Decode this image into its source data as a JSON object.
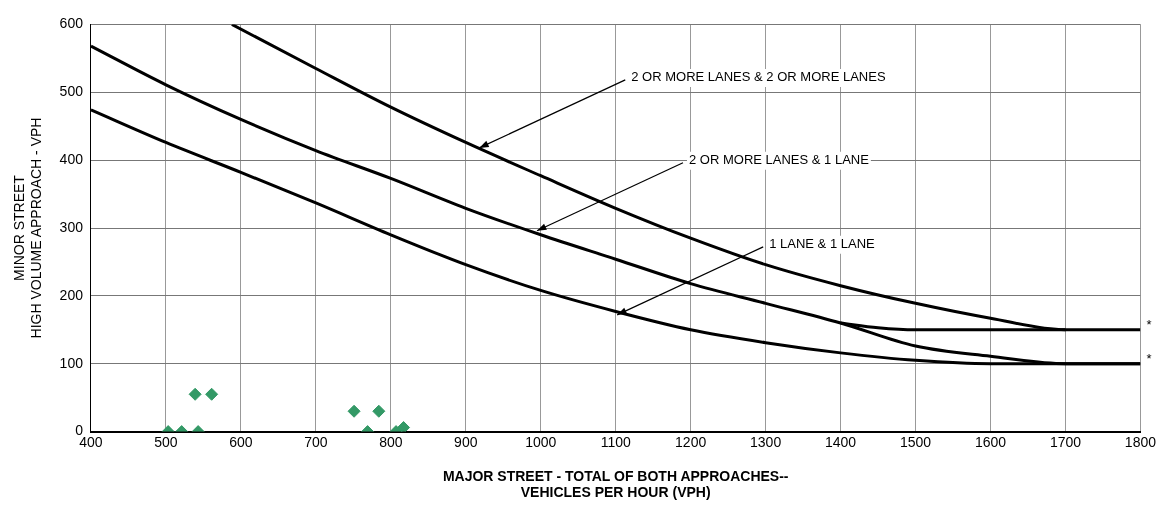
{
  "chart_data": {
    "type": "line",
    "xlabel": "MAJOR STREET - TOTAL OF BOTH APPROACHES--\nVEHICLES PER HOUR (VPH)",
    "ylabel": "MINOR STREET\nHIGH VOLUME APPROACH - VPH",
    "xlim": [
      400,
      1800
    ],
    "xticks": [
      400,
      500,
      600,
      700,
      800,
      900,
      1000,
      1100,
      1200,
      1300,
      1400,
      1500,
      1600,
      1700,
      1800
    ],
    "ylim": [
      0,
      600
    ],
    "yticks": [
      0,
      100,
      200,
      300,
      400,
      500,
      600
    ],
    "grid": true,
    "legend": false,
    "series": [
      {
        "type": "line",
        "color": "#000000",
        "marker": "none",
        "x": [
          588,
          700,
          800,
          900,
          1000,
          1100,
          1200,
          1300,
          1400,
          1500,
          1600,
          1700,
          1800
        ],
        "values": [
          600,
          535,
          478,
          426,
          377,
          329,
          285,
          246,
          215,
          189,
          167,
          150,
          150
        ]
      },
      {
        "type": "line",
        "color": "#000000",
        "marker": "none",
        "x": [
          400,
          500,
          600,
          700,
          800,
          900,
          1000,
          1100,
          1200,
          1300,
          1400,
          1500,
          1600,
          1700,
          1800
        ],
        "values": [
          568,
          511,
          460,
          414,
          373,
          329,
          290,
          254,
          218,
          189,
          160,
          126,
          111,
          100,
          100
        ]
      },
      {
        "type": "line",
        "color": "#000000",
        "marker": "none",
        "x": [
          1400,
          1450,
          1500,
          1600,
          1700
        ],
        "values": [
          160,
          153,
          150,
          150,
          150
        ]
      },
      {
        "type": "line",
        "color": "#000000",
        "marker": "none",
        "x": [
          400,
          500,
          600,
          700,
          800,
          900,
          1000,
          1100,
          1200,
          1300,
          1400,
          1500,
          1600,
          1700,
          1800
        ],
        "values": [
          474,
          426,
          382,
          337,
          290,
          246,
          208,
          177,
          150,
          131,
          116,
          105,
          100,
          100,
          100
        ]
      },
      {
        "type": "scatter",
        "color": "#339966",
        "marker": "diamond",
        "x": [
          503,
          521,
          543,
          539,
          561,
          751,
          784,
          769,
          807,
          817
        ],
        "values": [
          0,
          0,
          0,
          55,
          55,
          30,
          30,
          0,
          0,
          6
        ]
      }
    ],
    "annotations": [
      {
        "text": "2 OR MORE LANES & 2 OR MORE LANES",
        "x": 918,
        "y": 418
      },
      {
        "text": "2 OR MORE LANES & 1 LANE",
        "x": 995,
        "y": 296
      },
      {
        "text": "1 LANE & 1 LANE",
        "x": 1102,
        "y": 172
      },
      {
        "text": "*",
        "x": 1800,
        "y": 150
      },
      {
        "text": "*",
        "x": 1800,
        "y": 100
      }
    ]
  }
}
